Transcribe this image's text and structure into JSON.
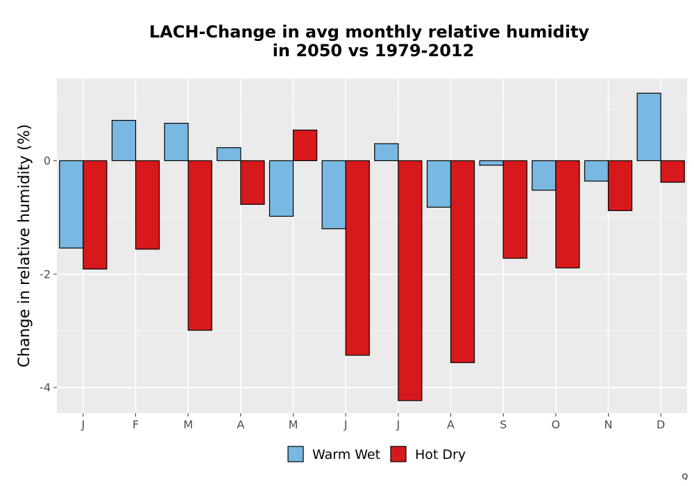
{
  "chart_data": {
    "type": "bar",
    "title_lines": [
      "LACH-Change in avg monthly relative humidity",
      "in 2050 vs 1979-2012"
    ],
    "xlabel": "",
    "ylabel": "Change in relative humidity (%)",
    "categories": [
      "J",
      "F",
      "M",
      "A",
      "M",
      "J",
      "J",
      "A",
      "S",
      "O",
      "N",
      "D"
    ],
    "series": [
      {
        "name": "Warm Wet",
        "color": "#78b8e2",
        "values": [
          -1.54,
          0.71,
          0.66,
          0.23,
          -0.98,
          -1.2,
          0.3,
          -0.82,
          -0.08,
          -0.52,
          -0.36,
          1.19
        ]
      },
      {
        "name": "Hot Dry",
        "color": "#d7191c",
        "values": [
          -1.91,
          -1.56,
          -2.99,
          -0.77,
          0.54,
          -3.43,
          -4.23,
          -3.56,
          -1.72,
          -1.89,
          -0.88,
          -0.38
        ]
      }
    ],
    "ylim": [
      -4.45,
      1.45
    ],
    "yticks": [
      {
        "value": 0,
        "label": "0"
      },
      {
        "value": -2,
        "label": "-2"
      },
      {
        "value": -4,
        "label": "-4"
      }
    ],
    "grid": true,
    "legend_position": "bottom",
    "corner_note": "Q"
  }
}
